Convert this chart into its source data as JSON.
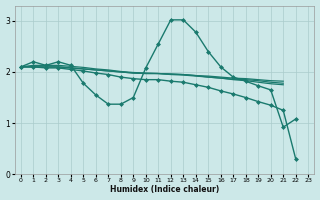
{
  "xlabel": "Humidex (Indice chaleur)",
  "bg_color": "#cce8e8",
  "grid_color": "#aacccc",
  "line_color": "#1a7a6e",
  "xlim": [
    -0.5,
    23.5
  ],
  "ylim": [
    0,
    3.3
  ],
  "yticks": [
    0,
    1,
    2,
    3
  ],
  "xticks": [
    0,
    1,
    2,
    3,
    4,
    5,
    6,
    7,
    8,
    9,
    10,
    11,
    12,
    13,
    14,
    15,
    16,
    17,
    18,
    19,
    20,
    21,
    22,
    23
  ],
  "series1_y": [
    2.1,
    2.2,
    2.13,
    2.2,
    2.13,
    1.78,
    1.55,
    1.37,
    1.37,
    1.5,
    2.08,
    2.55,
    3.02,
    3.02,
    2.78,
    2.4,
    2.1,
    1.9,
    1.82,
    1.73,
    1.65,
    0.92,
    1.08,
    null
  ],
  "series2_y": [
    2.1,
    2.1,
    2.1,
    2.1,
    2.08,
    2.06,
    2.04,
    2.02,
    2.0,
    1.98,
    1.97,
    1.97,
    1.96,
    1.95,
    1.93,
    1.92,
    1.9,
    1.88,
    1.87,
    1.85,
    1.83,
    1.82,
    null,
    null
  ],
  "series3_y": [
    2.1,
    2.1,
    2.1,
    2.1,
    2.08,
    2.06,
    2.04,
    2.02,
    2.0,
    1.98,
    1.97,
    1.97,
    1.95,
    1.94,
    1.92,
    1.9,
    1.88,
    1.86,
    1.85,
    1.83,
    1.8,
    1.78,
    null,
    null
  ],
  "series4_y": [
    2.1,
    2.13,
    2.13,
    2.13,
    2.11,
    2.09,
    2.06,
    2.04,
    2.01,
    1.99,
    1.98,
    1.97,
    1.96,
    1.95,
    1.93,
    1.9,
    1.88,
    1.85,
    1.83,
    1.8,
    1.77,
    1.75,
    null,
    null
  ],
  "series5_y": [
    2.1,
    2.1,
    2.08,
    2.08,
    2.05,
    2.02,
    1.98,
    1.95,
    1.9,
    1.87,
    1.85,
    1.85,
    1.82,
    1.8,
    1.75,
    1.7,
    1.63,
    1.57,
    1.5,
    1.42,
    1.35,
    1.25,
    0.3,
    null
  ]
}
